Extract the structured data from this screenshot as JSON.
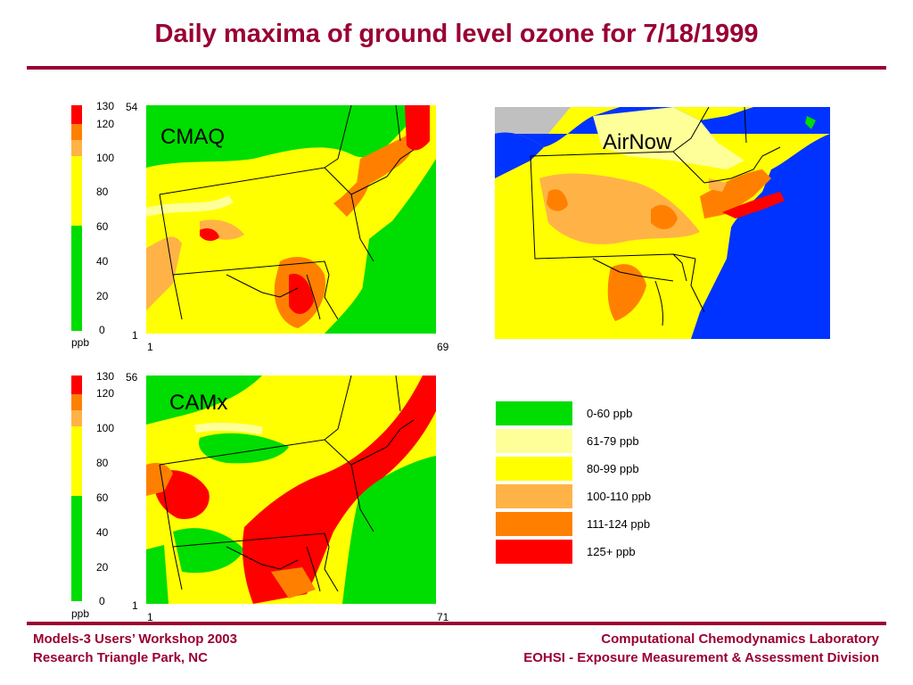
{
  "title": "Daily maxima of ground level ozone for 7/18/1999",
  "colors": {
    "accent": "#990033",
    "green": "#00dd00",
    "lightyellow": "#ffff99",
    "yellow": "#ffff00",
    "lightorange": "#ffb347",
    "orange": "#ff8000",
    "red": "#ff0000",
    "water": "#0033ff",
    "gray": "#c0c0c0"
  },
  "colorbar": {
    "ticks": [
      "130",
      "120",
      "100",
      "80",
      "60",
      "40",
      "20",
      "0"
    ],
    "unit": "ppb"
  },
  "cmaq": {
    "label": "CMAQ",
    "y_top": "54",
    "y_bottom": "1",
    "x_left": "1",
    "x_right": "69"
  },
  "camx": {
    "label": "CAMx",
    "y_top": "56",
    "y_bottom": "1",
    "x_left": "1",
    "x_right": "71"
  },
  "airnow": {
    "label": "AirNow"
  },
  "legend": [
    {
      "label": "0-60 ppb",
      "color": "#00dd00"
    },
    {
      "label": "61-79 ppb",
      "color": "#ffff99"
    },
    {
      "label": "80-99 ppb",
      "color": "#ffff00"
    },
    {
      "label": "100-110 ppb",
      "color": "#ffb347"
    },
    {
      "label": "111-124 ppb",
      "color": "#ff8000"
    },
    {
      "label": "125+ ppb",
      "color": "#ff0000"
    }
  ],
  "footer": {
    "left_line1": "Models-3 Users’ Workshop 2003",
    "left_line2": "Research Triangle Park, NC",
    "right_line1": "Computational Chemodynamics Laboratory",
    "right_line2": "EOHSI - Exposure Measurement & Assessment Division"
  }
}
